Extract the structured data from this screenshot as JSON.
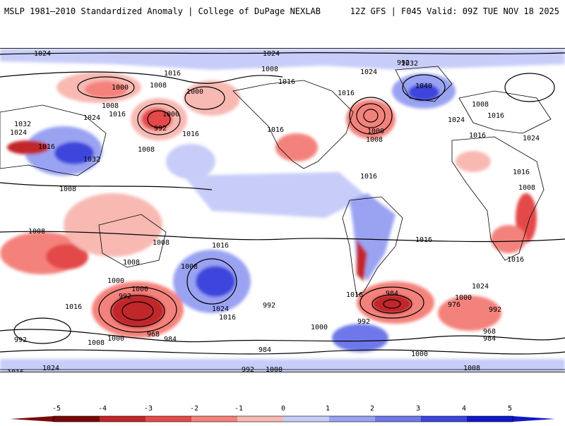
{
  "header": {
    "title": "MSLP 1981–2010 Standardized Anomaly | College of DuPage NEXLAB",
    "run_info": "12Z GFS | F045 Valid: 09Z TUE NOV 18 2025"
  },
  "colors": {
    "neg5": "#7a0a0a",
    "neg4": "#c0262a",
    "neg3": "#e34a4a",
    "neg2": "#f4827c",
    "neg1": "#f8b9b3",
    "zero": "#ffffff",
    "pos1": "#c7cdf8",
    "pos2": "#9aa3f2",
    "pos3": "#6e78ea",
    "pos4": "#3c45dc",
    "pos5": "#1018c8",
    "contour": "#000000",
    "coast": "#000000"
  },
  "map": {
    "contour_labels": [
      "1024",
      "1024",
      "1016",
      "1000",
      "1008",
      "1016",
      "1008",
      "1000",
      "992",
      "1000",
      "1008",
      "1016",
      "1024",
      "1032",
      "1024",
      "1016",
      "1016",
      "1032",
      "992",
      "1008",
      "1016",
      "1024",
      "1000",
      "1008",
      "1016",
      "1032",
      "1040",
      "1024",
      "1008",
      "1016",
      "1016",
      "1024",
      "1008",
      "1016",
      "1008",
      "1016",
      "1008",
      "1016",
      "1016",
      "1016",
      "1008",
      "1024",
      "1008",
      "1000",
      "992",
      "968",
      "984",
      "1000",
      "1024",
      "1016",
      "992",
      "1000",
      "984",
      "992",
      "1016",
      "984",
      "976",
      "992",
      "1000",
      "968",
      "984",
      "1000",
      "1008",
      "1016",
      "992",
      "1024",
      "1016",
      "1008",
      "1000",
      "992",
      "1000",
      "1008"
    ]
  },
  "colorbar": {
    "ticks": [
      "-5",
      "-4",
      "-3",
      "-2",
      "-1",
      "0",
      "1",
      "2",
      "3",
      "4",
      "5"
    ]
  }
}
